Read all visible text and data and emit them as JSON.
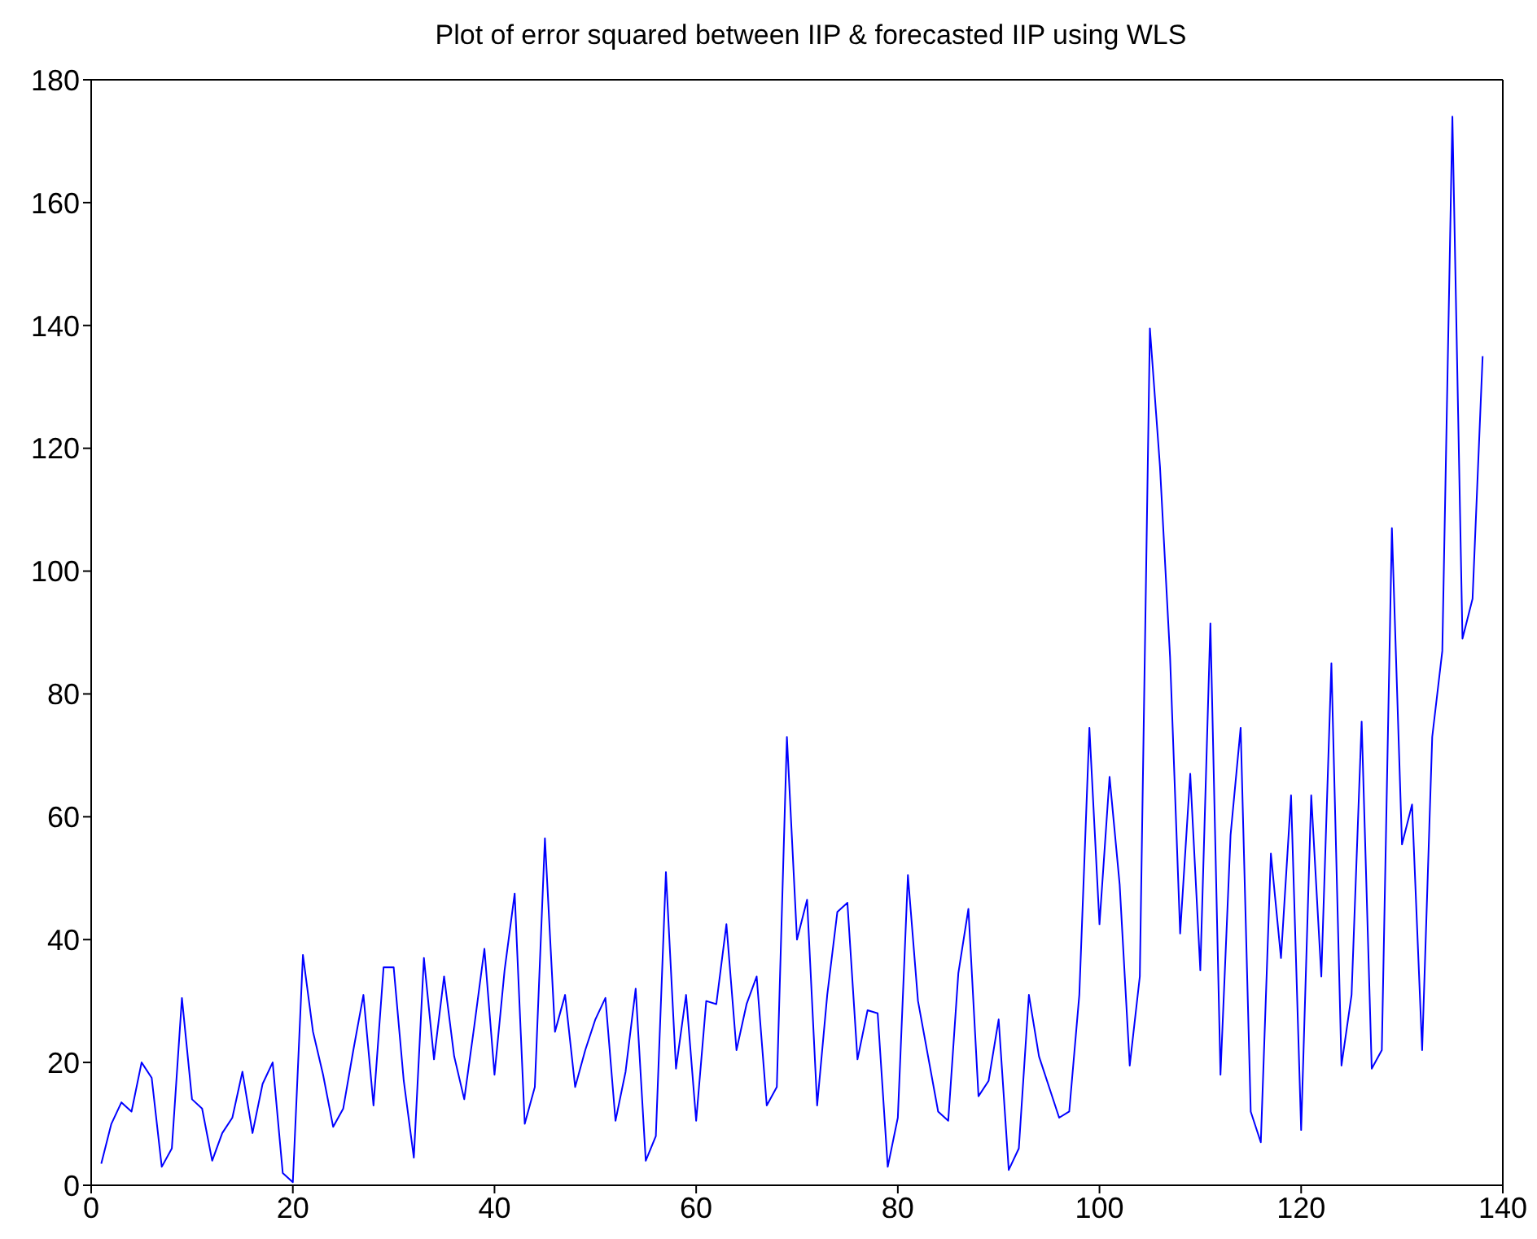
{
  "chart_data": {
    "type": "line",
    "title": "Plot of error squared between IIP & forecasted IIP using WLS",
    "x": [
      1,
      2,
      3,
      4,
      5,
      6,
      7,
      8,
      9,
      10,
      11,
      12,
      13,
      14,
      15,
      16,
      17,
      18,
      19,
      20,
      21,
      22,
      23,
      24,
      25,
      26,
      27,
      28,
      29,
      30,
      31,
      32,
      33,
      34,
      35,
      36,
      37,
      38,
      39,
      40,
      41,
      42,
      43,
      44,
      45,
      46,
      47,
      48,
      49,
      50,
      51,
      52,
      53,
      54,
      55,
      56,
      57,
      58,
      59,
      60,
      61,
      62,
      63,
      64,
      65,
      66,
      67,
      68,
      69,
      70,
      71,
      72,
      73,
      74,
      75,
      76,
      77,
      78,
      79,
      80,
      81,
      82,
      83,
      84,
      85,
      86,
      87,
      88,
      89,
      90,
      91,
      92,
      93,
      94,
      95,
      96,
      97,
      98,
      99,
      100,
      101,
      102,
      103,
      104,
      105,
      106,
      107,
      108,
      109,
      110,
      111,
      112,
      113,
      114,
      115,
      116,
      117,
      118,
      119,
      120,
      121,
      122,
      123,
      124,
      125,
      126,
      127,
      128,
      129,
      130,
      131,
      132,
      133,
      134,
      135,
      136,
      137,
      138
    ],
    "series": [
      {
        "color": "#0000ff",
        "values": [
          3.5,
          10,
          13.5,
          12,
          20,
          17.5,
          3,
          6,
          30.5,
          14,
          12.5,
          4,
          8.5,
          11,
          18.5,
          8.5,
          16.5,
          20,
          2,
          0.5,
          37.5,
          25,
          18,
          9.5,
          12.5,
          22,
          31,
          13,
          35.5,
          35.5,
          17,
          4.5,
          37,
          20.5,
          34,
          21,
          14,
          26,
          38.5,
          18,
          35,
          47.5,
          10,
          16,
          56.5,
          25,
          31,
          16,
          22,
          27,
          30.5,
          10.5,
          18.5,
          32,
          4,
          8,
          51,
          19,
          31,
          10.5,
          30,
          29.5,
          42.5,
          22,
          29.5,
          34,
          13,
          16,
          73,
          40,
          46.5,
          13,
          31,
          44.5,
          46,
          20.5,
          28.5,
          28,
          3,
          11,
          50.5,
          30,
          21,
          12,
          10.5,
          34.5,
          45,
          14.5,
          17,
          27,
          2.5,
          6,
          31,
          21,
          16,
          11,
          12,
          31,
          74.5,
          42.5,
          66.5,
          49,
          19.5,
          34,
          139.5,
          117,
          86,
          41,
          67,
          35,
          91.5,
          18,
          57,
          74.5,
          12,
          7,
          54,
          37,
          63.5,
          9,
          63.5,
          34,
          85,
          19.5,
          31,
          75.5,
          19,
          22,
          107,
          55.5,
          62,
          22,
          73,
          87,
          174,
          89,
          95.5,
          135
        ]
      }
    ],
    "xlim": [
      0,
      140
    ],
    "xticks": [
      0,
      20,
      40,
      60,
      80,
      100,
      120,
      140
    ],
    "ylim": [
      0,
      180
    ],
    "yticks": [
      0,
      20,
      40,
      60,
      80,
      100,
      120,
      140,
      160,
      180
    ],
    "marker": "none",
    "line_style": "solid"
  }
}
